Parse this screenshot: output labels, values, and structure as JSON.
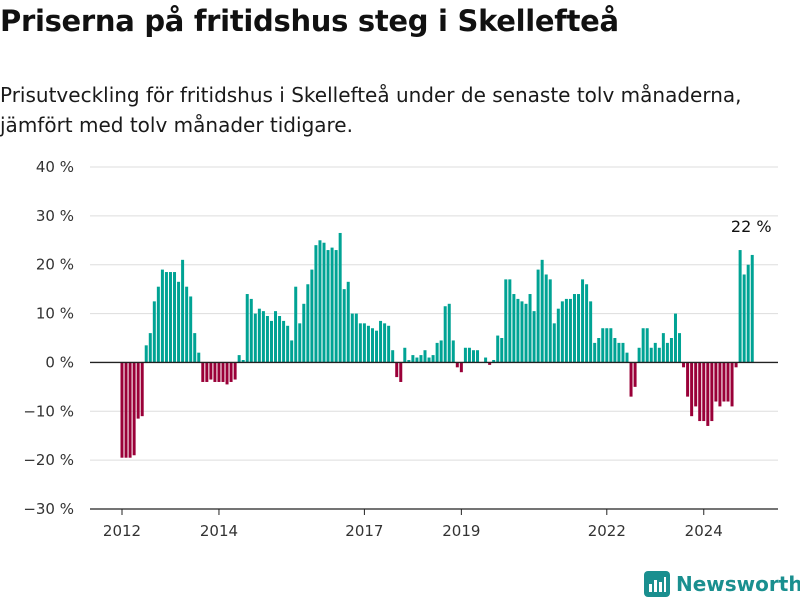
{
  "title": "Priserna på fritidshus steg i Skellefteå",
  "subtitle": "Prisutveckling för fritidshus i Skellefteå under de senaste tolv månaderna, jämfört med tolv månader tidigare.",
  "brand": "Newsworthy",
  "colors": {
    "positive": "#00a394",
    "negative": "#9a0038",
    "grid": "#dddddd",
    "zero": "#222222",
    "brand": "#1a8f8f"
  },
  "chart_data": {
    "type": "bar",
    "ylim": [
      -30,
      40
    ],
    "y_ticks": [
      40,
      30,
      20,
      10,
      0,
      -10,
      -20,
      -30
    ],
    "y_tick_labels": [
      "40 %",
      "30 %",
      "20 %",
      "10 %",
      "0 %",
      "−10 %",
      "−20 %",
      "−30 %"
    ],
    "x_tick_labels": [
      "2012",
      "2014",
      "2017",
      "2019",
      "2022",
      "2024"
    ],
    "x_tick_index": [
      0,
      24,
      60,
      84,
      120,
      144
    ],
    "start_month": "2012-01",
    "annotation": "22 %",
    "values": [
      -19.5,
      -19.5,
      -19.5,
      -19.0,
      -11.5,
      -11.0,
      3.5,
      6.0,
      12.5,
      15.5,
      19.0,
      18.5,
      18.5,
      18.5,
      16.5,
      21.0,
      15.5,
      13.5,
      6.0,
      2.0,
      -4.0,
      -4.0,
      -3.5,
      -4.0,
      -4.0,
      -4.0,
      -4.5,
      -4.0,
      -3.5,
      1.5,
      0.5,
      14.0,
      13.0,
      10.0,
      11.0,
      10.5,
      9.5,
      8.5,
      10.5,
      9.5,
      8.5,
      7.5,
      4.5,
      15.5,
      8.0,
      12.0,
      16.0,
      19.0,
      24.0,
      25.0,
      24.5,
      23.0,
      23.5,
      23.0,
      26.5,
      15.0,
      16.5,
      10.0,
      10.0,
      8.0,
      8.0,
      7.5,
      7.0,
      6.5,
      8.5,
      8.0,
      7.5,
      2.5,
      -3.0,
      -4.0,
      3.0,
      0.5,
      1.5,
      1.0,
      1.5,
      2.5,
      1.0,
      1.5,
      4.0,
      4.5,
      11.5,
      12.0,
      4.5,
      -1.0,
      -2.0,
      3.0,
      3.0,
      2.5,
      2.5,
      0.0,
      1.0,
      -0.5,
      0.5,
      5.5,
      5.0,
      17.0,
      17.0,
      14.0,
      13.0,
      12.5,
      12.0,
      14.0,
      10.5,
      19.0,
      21.0,
      18.0,
      17.0,
      8.0,
      11.0,
      12.5,
      13.0,
      13.0,
      14.0,
      14.0,
      17.0,
      16.0,
      12.5,
      4.0,
      5.0,
      7.0,
      7.0,
      7.0,
      5.0,
      4.0,
      4.0,
      2.0,
      -7.0,
      -5.0,
      3.0,
      7.0,
      7.0,
      3.0,
      4.0,
      3.0,
      6.0,
      4.0,
      5.0,
      10.0,
      6.0,
      -1.0,
      -7.0,
      -11.0,
      -9.0,
      -12.0,
      -12.0,
      -13.0,
      -12.0,
      -8.0,
      -9.0,
      -8.0,
      -8.0,
      -9.0,
      -1.0,
      23.0,
      18.0,
      20.0,
      22.0
    ]
  }
}
